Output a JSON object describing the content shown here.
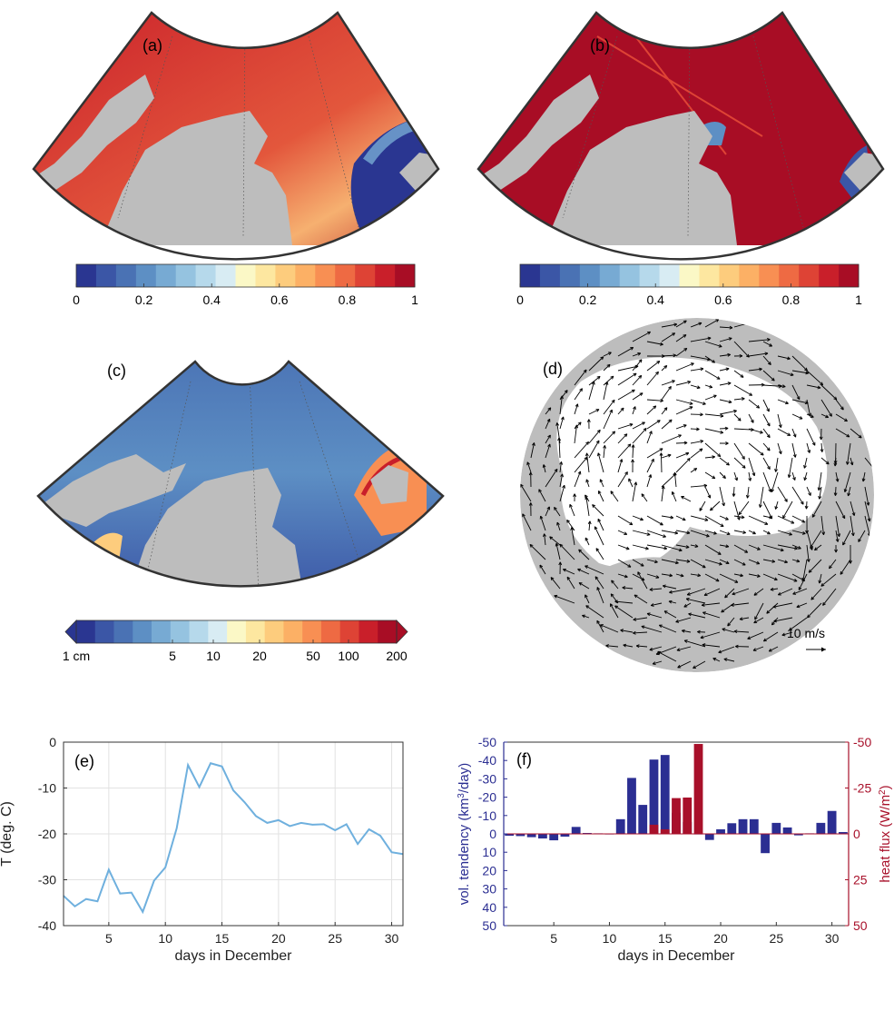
{
  "panels": {
    "a": {
      "label": "(a)"
    },
    "b": {
      "label": "(b)"
    },
    "c": {
      "label": "(c)"
    },
    "d": {
      "label": "(d)",
      "scale_label": "10 m/s"
    },
    "e": {
      "label": "(e)"
    },
    "f": {
      "label": "(f)"
    }
  },
  "colorbars": {
    "a": {
      "ticks": [
        "0",
        "0.2",
        "0.4",
        "0.6",
        "0.8",
        "1"
      ]
    },
    "b": {
      "ticks": [
        "0",
        "0.2",
        "0.4",
        "0.6",
        "0.8",
        "1"
      ]
    },
    "c": {
      "ticks": [
        "1 cm",
        "5",
        "10",
        "20",
        "50",
        "100",
        "200"
      ]
    }
  },
  "colors": {
    "ramp": [
      "#2a3691",
      "#3b56a6",
      "#4a72b4",
      "#5d8fc4",
      "#77aad3",
      "#95c3e0",
      "#b6d9eb",
      "#d8ecf3",
      "#fbf8c6",
      "#fde7a0",
      "#fdcc7d",
      "#fcb065",
      "#f88f53",
      "#ee6a43",
      "#de4335",
      "#c91f2a",
      "#a80d25"
    ],
    "land": "#bdbdbd",
    "line_e": "#6fb0de",
    "bar_vol": "#2b2e92",
    "bar_heat": "#a8102a",
    "axis_left_f": "#2b2e92",
    "axis_right_f": "#a8102a"
  },
  "chart_data": [
    {
      "panel": "e",
      "type": "line",
      "xlabel": "days in December",
      "ylabel": "T (deg. C)",
      "xlim": [
        1,
        31
      ],
      "ylim": [
        -40,
        0
      ],
      "xticks": [
        5,
        10,
        15,
        20,
        25,
        30
      ],
      "yticks": [
        0,
        -10,
        -20,
        -30,
        -40
      ],
      "grid": true,
      "x": [
        1,
        2,
        3,
        4,
        5,
        6,
        7,
        8,
        9,
        10,
        11,
        12,
        13,
        14,
        15,
        16,
        17,
        18,
        19,
        20,
        21,
        22,
        23,
        24,
        25,
        26,
        27,
        28,
        29,
        30,
        31
      ],
      "y": [
        -33.5,
        -35.8,
        -34.2,
        -34.7,
        -27.8,
        -33.0,
        -32.8,
        -37.0,
        -30.2,
        -27.3,
        -18.8,
        -5.0,
        -9.8,
        -4.6,
        -5.3,
        -10.5,
        -13.1,
        -16.1,
        -17.6,
        -17.0,
        -18.3,
        -17.6,
        -18.0,
        -17.9,
        -19.2,
        -17.9,
        -22.2,
        -19.0,
        -20.4,
        -24.0,
        -24.4
      ]
    },
    {
      "panel": "f",
      "type": "bar",
      "xlabel": "days in December",
      "xlim": [
        0.5,
        31.5
      ],
      "xticks": [
        5,
        10,
        15,
        20,
        25,
        30
      ],
      "y_left": {
        "label_parts": [
          "vol. tendency (km",
          "3",
          "/day)"
        ],
        "lim": [
          -50,
          50
        ],
        "ticks": [
          50,
          40,
          30,
          20,
          10,
          0,
          -10,
          -20,
          -30,
          -40,
          -50
        ]
      },
      "y_right": {
        "label_parts": [
          "heat flux (W/m",
          "2",
          ")"
        ],
        "lim": [
          50,
          -50
        ],
        "ticks": [
          "-50",
          "-25",
          "0",
          "25",
          "50"
        ],
        "tick_values": [
          -50,
          -25,
          0,
          25,
          50
        ]
      },
      "series": [
        {
          "axis": "left",
          "x": [
            1,
            2,
            3,
            4,
            5,
            6,
            7,
            8,
            9,
            10,
            11,
            12,
            13,
            14,
            15,
            16,
            17,
            18,
            19,
            20,
            21,
            22,
            23,
            24,
            25,
            26,
            27,
            28,
            29,
            30,
            31
          ],
          "values": [
            1.0,
            1.2,
            1.8,
            2.5,
            3.5,
            1.5,
            -3.8,
            -0.5,
            -0.3,
            0.3,
            -8.0,
            -30.5,
            -15.8,
            -40.5,
            -43.0,
            -11.5,
            -6.5,
            0.3,
            3.3,
            -2.5,
            -5.8,
            -8.0,
            -8.0,
            10.5,
            -6.0,
            -3.5,
            0.8,
            -0.3,
            -6.0,
            -12.5,
            -1.0
          ]
        },
        {
          "axis": "right",
          "x": [
            14,
            15,
            16,
            17,
            18
          ],
          "values": [
            -5.0,
            -2.5,
            -19.5,
            -19.8,
            -49.0
          ]
        }
      ]
    }
  ]
}
